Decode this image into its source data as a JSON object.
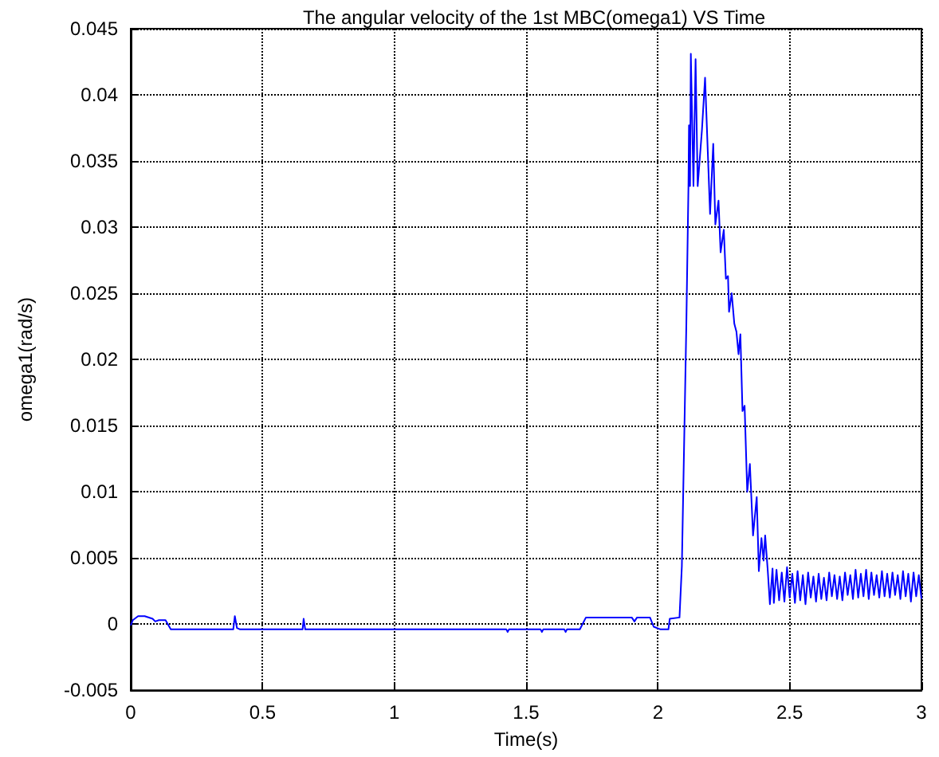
{
  "chart_data": {
    "type": "line",
    "title": "The angular velocity of the 1st MBC(omega1) VS Time",
    "xlabel": "Time(s)",
    "ylabel": "omega1(rad/s)",
    "x": [
      0,
      0.008,
      0.028,
      0.053,
      0.083,
      0.093,
      0.107,
      0.132,
      0.152,
      0.389,
      0.395,
      0.403,
      0.415,
      0.652,
      0.656,
      0.662,
      1.425,
      1.43,
      1.435,
      1.555,
      1.56,
      1.565,
      1.645,
      1.65,
      1.655,
      1.704,
      1.727,
      1.901,
      1.911,
      1.921,
      1.97,
      1.984,
      2.01,
      2.04,
      2.045,
      2.082,
      2.091,
      2.108,
      2.116,
      2.118,
      2.122,
      2.125,
      2.135,
      2.143,
      2.151,
      2.167,
      2.179,
      2.198,
      2.21,
      2.218,
      2.23,
      2.238,
      2.25,
      2.258,
      2.266,
      2.27,
      2.28,
      2.29,
      2.298,
      2.306,
      2.313,
      2.321,
      2.329,
      2.339,
      2.349,
      2.361,
      2.375,
      2.383,
      2.393,
      2.401,
      2.407,
      2.417,
      2.425,
      2.435,
      2.44,
      2.45,
      2.46,
      2.47,
      2.48,
      2.49,
      2.5,
      2.51,
      2.52,
      2.53,
      2.54,
      2.55,
      2.56,
      2.57,
      2.58,
      2.59,
      2.6,
      2.61,
      2.62,
      2.63,
      2.64,
      2.65,
      2.66,
      2.67,
      2.68,
      2.69,
      2.7,
      2.71,
      2.72,
      2.73,
      2.74,
      2.75,
      2.76,
      2.77,
      2.78,
      2.79,
      2.8,
      2.81,
      2.82,
      2.83,
      2.84,
      2.85,
      2.86,
      2.87,
      2.88,
      2.89,
      2.9,
      2.91,
      2.92,
      2.93,
      2.94,
      2.95,
      2.96,
      2.97,
      2.98,
      2.99,
      3
    ],
    "values": [
      -0.0001,
      0.0003,
      0.0006,
      0.0006,
      0.0004,
      0.0002,
      0.0003,
      0.0003,
      -0.0004,
      -0.0004,
      0.0006,
      -0.0003,
      -0.0004,
      -0.0004,
      0.0004,
      -0.0004,
      -0.0004,
      -0.0006,
      -0.0004,
      -0.0004,
      -0.0006,
      -0.0004,
      -0.0004,
      -0.0006,
      -0.0004,
      -0.0004,
      0.0005,
      0.0005,
      0.0002,
      0.0005,
      0.0005,
      -0.0002,
      -0.0004,
      -0.0004,
      0.0004,
      0.0005,
      0.0044,
      0.0227,
      0.0331,
      0.0377,
      0.0331,
      0.0431,
      0.0331,
      0.0427,
      0.0331,
      0.0373,
      0.0413,
      0.031,
      0.0363,
      0.0302,
      0.032,
      0.0281,
      0.0298,
      0.0261,
      0.0263,
      0.0236,
      0.025,
      0.0227,
      0.0221,
      0.0204,
      0.0219,
      0.0161,
      0.0165,
      0.01,
      0.0121,
      0.0067,
      0.0096,
      0.004,
      0.0065,
      0.0048,
      0.0067,
      0.004,
      0.0015,
      0.0042,
      0.0016,
      0.0041,
      0.0018,
      0.0039,
      0.0017,
      0.0043,
      0.002,
      0.0038,
      0.0016,
      0.004,
      0.0018,
      0.0037,
      0.0015,
      0.0039,
      0.002,
      0.0036,
      0.0017,
      0.0038,
      0.0019,
      0.0035,
      0.0018,
      0.0039,
      0.0021,
      0.0037,
      0.0019,
      0.0036,
      0.0018,
      0.0039,
      0.0022,
      0.0037,
      0.0019,
      0.0041,
      0.002,
      0.0038,
      0.0021,
      0.0041,
      0.0019,
      0.0039,
      0.0022,
      0.0037,
      0.002,
      0.004,
      0.0021,
      0.0038,
      0.002,
      0.0039,
      0.0022,
      0.0037,
      0.0019,
      0.004,
      0.0021,
      0.0038,
      0.0017,
      0.0039,
      0.0021,
      0.0037,
      0.0019
    ],
    "color": "#0000ff",
    "line_style": "solid",
    "xlim": [
      0,
      3
    ],
    "xticks": [
      0,
      0.5,
      1,
      1.5,
      2,
      2.5,
      3
    ],
    "ylim": [
      -0.005,
      0.045
    ],
    "yticks": [
      -0.005,
      0,
      0.005,
      0.01,
      0.015,
      0.02,
      0.025,
      0.03,
      0.035,
      0.04,
      0.045
    ],
    "grid": true
  }
}
